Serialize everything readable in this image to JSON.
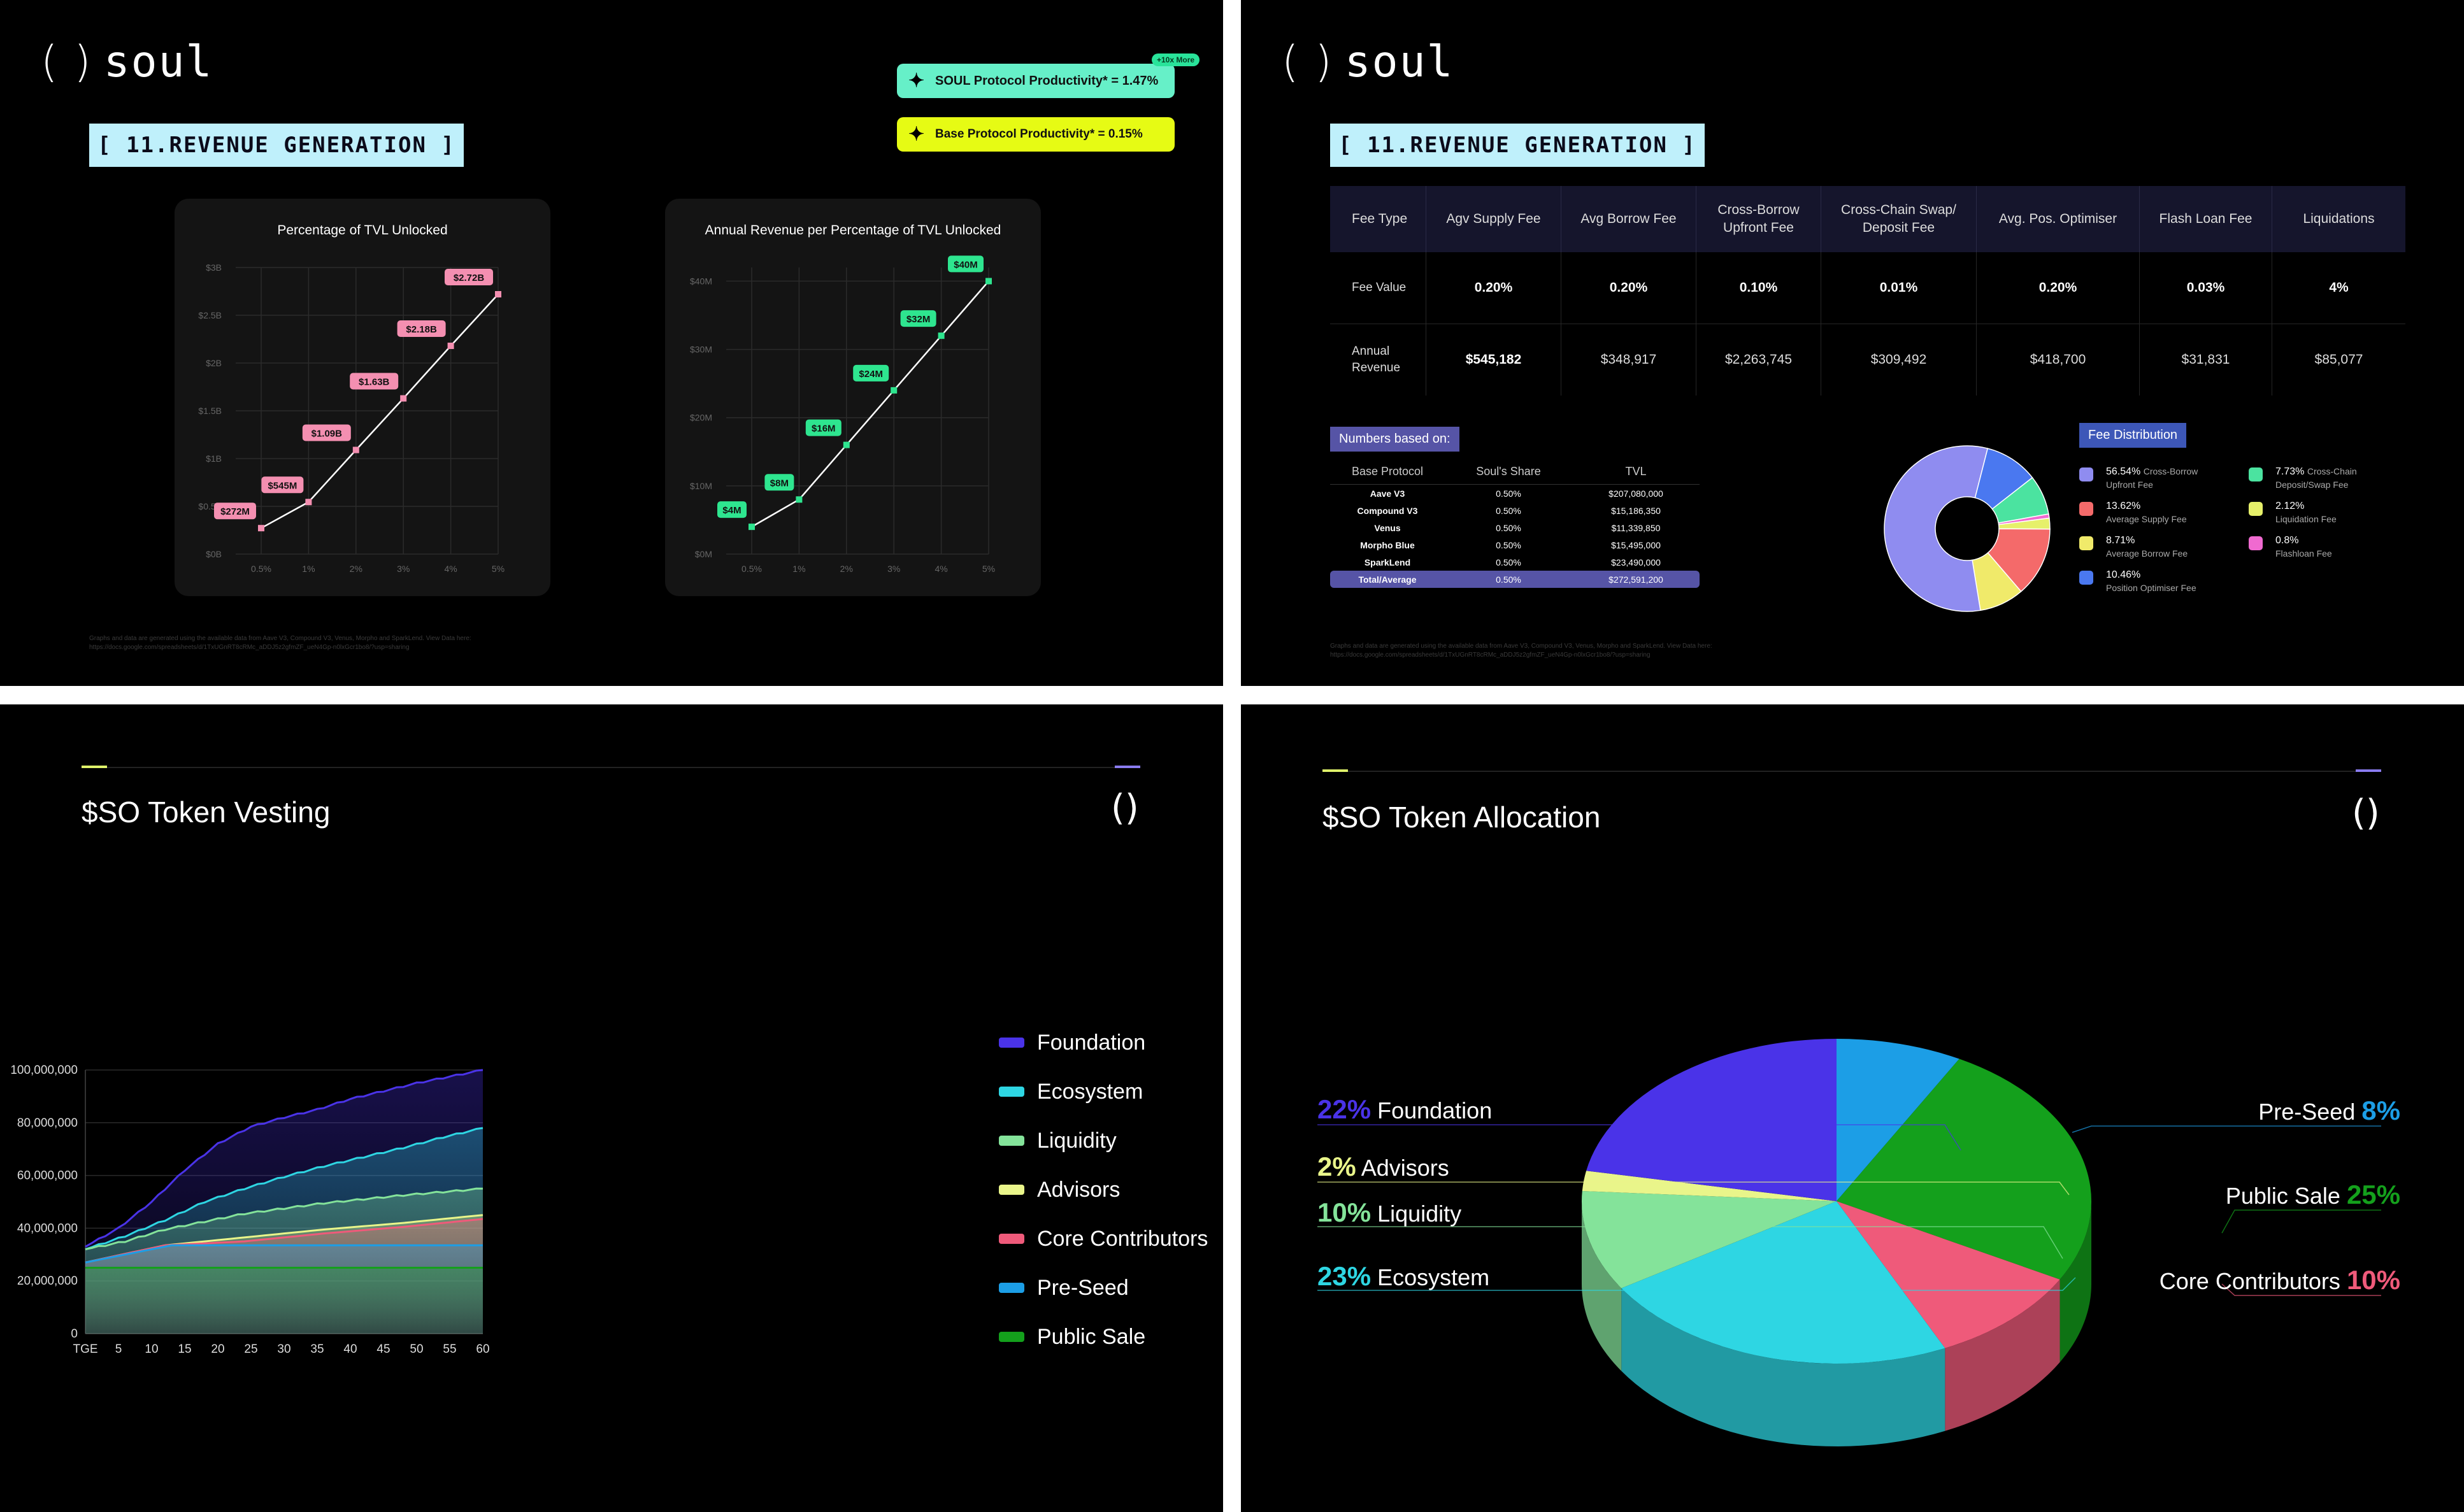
{
  "panel1": {
    "logo": "soul",
    "section": "[ 11.REVENUE GENERATION ]",
    "pill_soul": "SOUL Protocol Productivity* = 1.47%",
    "pill_soul_badge": "+10x More",
    "pill_base": "Base Protocol Productivity* = 0.15%",
    "footnote": "Graphs and data are generated using the available data from Aave V3, Compound V3, Venus, Morpho and SparkLend. View Data here:",
    "footnote_link": "https://docs.google.com/spreadsheets/d/1TxUGnRT8cRMc_aDDJ5z2gfmZF_ueN4Gp-n0lxGcr1bo8/?usp=sharing"
  },
  "panel2": {
    "logo": "soul",
    "section": "[ 11.REVENUE GENERATION ]",
    "table": {
      "headers": [
        "Fee Type",
        "Agv Supply Fee",
        "Avg Borrow Fee",
        "Cross-Borrow Upfront Fee",
        "Cross-Chain Swap/ Deposit Fee",
        "Avg. Pos. Optimiser",
        "Flash Loan Fee",
        "Liquidations"
      ],
      "fee_value_label": "Fee Value",
      "fee_values": [
        "0.20%",
        "0.20%",
        "0.10%",
        "0.01%",
        "0.20%",
        "0.03%",
        "4%"
      ],
      "revenue_label": "Annual Revenue",
      "revenues": [
        "$545,182",
        "$348,917",
        "$2,263,745",
        "$309,492",
        "$418,700",
        "$31,831",
        "$85,077"
      ]
    },
    "numbers_chip": "Numbers based on:",
    "numbers_headers": [
      "Base Protocol",
      "Soul's Share",
      "TVL"
    ],
    "numbers_rows": [
      [
        "Aave V3",
        "0.50%",
        "$207,080,000"
      ],
      [
        "Compound V3",
        "0.50%",
        "$15,186,350"
      ],
      [
        "Venus",
        "0.50%",
        "$11,339,850"
      ],
      [
        "Morpho Blue",
        "0.50%",
        "$15,495,000"
      ],
      [
        "SparkLend",
        "0.50%",
        "$23,490,000"
      ],
      [
        "Total/Average",
        "0.50%",
        "$272,591,200"
      ]
    ],
    "fee_chip": "Fee Distribution",
    "fee_legend": [
      {
        "pct": "56.54%",
        "name": "Cross-Borrow",
        "sub": "Upfront Fee",
        "color": "#8f8cf0"
      },
      {
        "pct": "13.62%",
        "name": "",
        "sub": "Average Supply Fee",
        "color": "#f46a6a"
      },
      {
        "pct": "8.71%",
        "name": "",
        "sub": "Average Borrow Fee",
        "color": "#f0ea6a"
      },
      {
        "pct": "10.46%",
        "name": "",
        "sub": "Position Optimiser Fee",
        "color": "#4a78f0"
      },
      {
        "pct": "7.73%",
        "name": "Cross-Chain",
        "sub": "Deposit/Swap Fee",
        "color": "#4be3a0"
      },
      {
        "pct": "2.12%",
        "name": "",
        "sub": "Liquidation Fee",
        "color": "#e6f06a"
      },
      {
        "pct": "0.8%",
        "name": "",
        "sub": "Flashloan Fee",
        "color": "#f06ad0"
      }
    ],
    "footnote": "Graphs and data are generated using the available data from Aave V3, Compound V3, Venus, Morpho and SparkLend. View Data here:",
    "footnote_link": "https://docs.google.com/spreadsheets/d/1TxUGnRT8cRMc_aDDJ5z2gfmZF_ueN4Gp-n0lxGcr1bo8/?usp=sharing"
  },
  "panel3": {
    "title": "$SO Token Vesting",
    "corner_logo": "()",
    "legend": [
      {
        "name": "Foundation",
        "color": "#4a33e8"
      },
      {
        "name": "Ecosystem",
        "color": "#2ed6e3"
      },
      {
        "name": "Liquidity",
        "color": "#84e39a"
      },
      {
        "name": "Advisors",
        "color": "#e9f58a"
      },
      {
        "name": "Core Contributors",
        "color": "#ef5a7a"
      },
      {
        "name": "Pre-Seed",
        "color": "#1c9ee6"
      },
      {
        "name": "Public Sale",
        "color": "#14a01c"
      }
    ]
  },
  "panel4": {
    "title": "$SO Token Allocation",
    "corner_logo": "()",
    "labels": [
      {
        "pct": "22%",
        "name": "Foundation",
        "color": "#4a33e8"
      },
      {
        "pct": "2%",
        "name": "Advisors",
        "color": "#e9f58a"
      },
      {
        "pct": "10%",
        "name": "Liquidity",
        "color": "#84e39a"
      },
      {
        "pct": "23%",
        "name": "Ecosystem",
        "color": "#2ed6e3"
      },
      {
        "pct": "8%",
        "name": "Pre-Seed",
        "color": "#1c9ee6"
      },
      {
        "pct": "25%",
        "name": "Public Sale",
        "color": "#14a01c"
      },
      {
        "pct": "10%",
        "name": "Core Contributors",
        "color": "#ef5a7a"
      }
    ]
  },
  "chart_data": [
    {
      "type": "line",
      "title": "Percentage of TVL Unlocked",
      "x": [
        "0.5%",
        "1%",
        "2%",
        "3%",
        "4%",
        "5%"
      ],
      "values": [
        0.272,
        0.545,
        1.09,
        1.63,
        2.18,
        2.72
      ],
      "data_labels": [
        "$272M",
        "$545M",
        "$1.09B",
        "$1.63B",
        "$2.18B",
        "$2.72B"
      ],
      "yticks": [
        "$0B",
        "$0.5B",
        "$1B",
        "$1.5B",
        "$2B",
        "$2.5B",
        "$3B"
      ],
      "ylim": [
        0,
        3
      ],
      "label_color": "#f48fb1"
    },
    {
      "type": "line",
      "title": "Annual Revenue per Percentage of TVL Unlocked",
      "x": [
        "0.5%",
        "1%",
        "2%",
        "3%",
        "4%",
        "5%"
      ],
      "values": [
        4,
        8,
        16,
        24,
        32,
        40
      ],
      "data_labels": [
        "$4M",
        "$8M",
        "$16M",
        "$24M",
        "$32M",
        "$40M"
      ],
      "yticks": [
        "$0M",
        "$10M",
        "$20M",
        "$30M",
        "$40M"
      ],
      "ylim": [
        0,
        42
      ],
      "label_color": "#2ee58f"
    },
    {
      "type": "pie",
      "title": "Fee Distribution",
      "labels": [
        "Cross-Borrow Upfront Fee",
        "Average Supply Fee",
        "Average Borrow Fee",
        "Position Optimiser Fee",
        "Cross-Chain Deposit/Swap Fee",
        "Liquidation Fee",
        "Flashloan Fee"
      ],
      "values": [
        56.54,
        13.62,
        8.71,
        10.46,
        7.73,
        2.12,
        0.8
      ]
    },
    {
      "type": "area",
      "title": "$SO Token Vesting",
      "x_ticks": [
        "TGE",
        "5",
        "10",
        "15",
        "20",
        "25",
        "30",
        "35",
        "40",
        "45",
        "50",
        "55",
        "60"
      ],
      "yticks": [
        "0",
        "20,000,000",
        "40,000,000",
        "60,000,000",
        "80,000,000",
        "100,000,000"
      ],
      "ylim": [
        0,
        100000000
      ],
      "xlim": [
        0,
        60
      ],
      "series": [
        {
          "name": "Public Sale",
          "x": [
            0,
            60
          ],
          "values": [
            25000000,
            25000000
          ]
        },
        {
          "name": "Pre-Seed",
          "x": [
            0,
            12,
            13,
            60
          ],
          "values": [
            27000000,
            33000000,
            33500000,
            33500000
          ]
        },
        {
          "name": "Core Contributors",
          "x": [
            0,
            12,
            24,
            36,
            48,
            60
          ],
          "values": [
            27000000,
            33500000,
            35000000,
            38000000,
            40500000,
            43500000
          ]
        },
        {
          "name": "Advisors",
          "x": [
            0,
            12,
            24,
            36,
            48,
            60
          ],
          "values": [
            27000000,
            33500000,
            36500000,
            39500000,
            42000000,
            45000000
          ]
        },
        {
          "name": "Liquidity",
          "x": [
            0,
            6,
            12,
            24,
            36,
            48,
            60
          ],
          "values": [
            32000000,
            35000000,
            39500000,
            45500000,
            49500000,
            52500000,
            55000000
          ]
        },
        {
          "name": "Ecosystem",
          "x": [
            0,
            6,
            12,
            18,
            24,
            30,
            36,
            42,
            48,
            54,
            60
          ],
          "values": [
            32000000,
            37000000,
            43000000,
            50000000,
            55000000,
            59500000,
            63500000,
            67000000,
            70500000,
            74500000,
            78000000
          ]
        },
        {
          "name": "Foundation",
          "x": [
            0,
            5,
            10,
            15,
            20,
            25,
            30,
            35,
            40,
            45,
            50,
            55,
            60
          ],
          "values": [
            33000000,
            40000000,
            50000000,
            62000000,
            72000000,
            78500000,
            82000000,
            85000000,
            89000000,
            92000000,
            95000000,
            97500000,
            100000000
          ]
        }
      ]
    },
    {
      "type": "pie",
      "title": "$SO Token Allocation",
      "labels": [
        "Pre-Seed",
        "Public Sale",
        "Core Contributors",
        "Ecosystem",
        "Liquidity",
        "Advisors",
        "Foundation"
      ],
      "values": [
        8,
        25,
        10,
        23,
        10,
        2,
        22
      ]
    }
  ]
}
